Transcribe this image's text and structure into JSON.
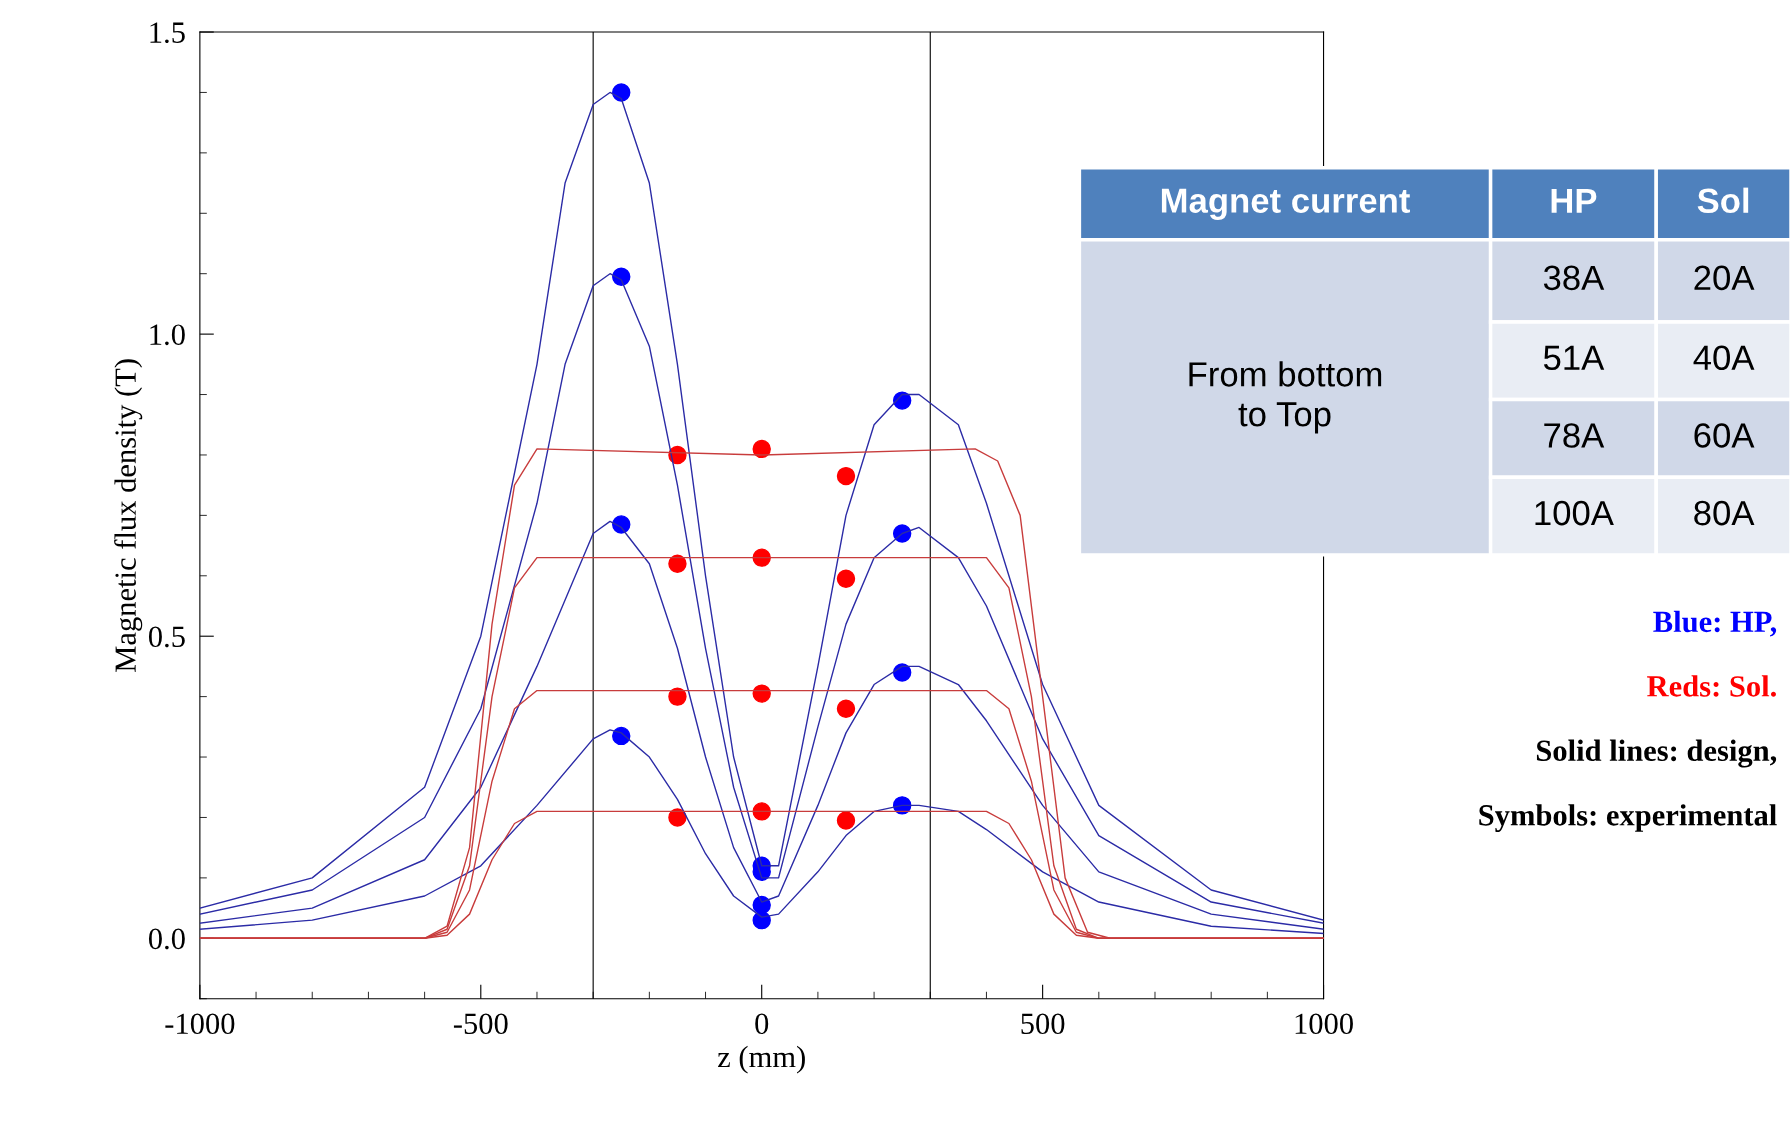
{
  "chart_data": {
    "type": "line",
    "xlabel": "z (mm)",
    "ylabel": "Magnetic flux density (T)",
    "xlim": [
      -1000,
      1000
    ],
    "ylim": [
      -0.1,
      1.5
    ],
    "xticks": [
      -1000,
      -500,
      0,
      500,
      1000
    ],
    "yticks": [
      {
        "value": 0,
        "label": "0.0"
      },
      0.5,
      {
        "value": 1,
        "label": "1.0"
      },
      1.5
    ],
    "grid": false,
    "legend": false,
    "ref_lines": [
      {
        "axis": "x",
        "value": -300,
        "color": "#000000"
      },
      {
        "axis": "x",
        "value": 300,
        "color": "#000000"
      }
    ],
    "series": [
      {
        "color": "#2b2ba6",
        "marker": "none",
        "x": [
          -1000,
          -800,
          -600,
          -500,
          -400,
          -300,
          -270,
          -250,
          -200,
          -150,
          -100,
          -50,
          0,
          30,
          100,
          150,
          200,
          250,
          280,
          350,
          400,
          500,
          600,
          800,
          1000
        ],
        "values": [
          0.015,
          0.03,
          0.07,
          0.12,
          0.22,
          0.33,
          0.345,
          0.34,
          0.3,
          0.23,
          0.14,
          0.07,
          0.035,
          0.04,
          0.11,
          0.17,
          0.21,
          0.22,
          0.22,
          0.21,
          0.18,
          0.11,
          0.06,
          0.02,
          0.008
        ]
      },
      {
        "color": "#2b2ba6",
        "marker": "none",
        "x": [
          -1000,
          -800,
          -600,
          -500,
          -400,
          -300,
          -270,
          -250,
          -200,
          -150,
          -100,
          -50,
          0,
          30,
          100,
          150,
          200,
          250,
          280,
          350,
          400,
          500,
          600,
          800,
          1000
        ],
        "values": [
          0.025,
          0.05,
          0.13,
          0.25,
          0.45,
          0.67,
          0.69,
          0.68,
          0.62,
          0.48,
          0.3,
          0.15,
          0.06,
          0.07,
          0.22,
          0.34,
          0.42,
          0.45,
          0.45,
          0.42,
          0.36,
          0.22,
          0.11,
          0.04,
          0.015
        ]
      },
      {
        "color": "#2b2ba6",
        "marker": "none",
        "x": [
          -1000,
          -800,
          -600,
          -500,
          -400,
          -350,
          -300,
          -270,
          -250,
          -200,
          -150,
          -100,
          -50,
          0,
          30,
          100,
          150,
          200,
          250,
          280,
          350,
          400,
          500,
          600,
          800,
          1000
        ],
        "values": [
          0.04,
          0.08,
          0.2,
          0.38,
          0.72,
          0.95,
          1.08,
          1.1,
          1.09,
          0.98,
          0.75,
          0.48,
          0.25,
          0.1,
          0.1,
          0.35,
          0.52,
          0.63,
          0.67,
          0.68,
          0.63,
          0.55,
          0.33,
          0.17,
          0.06,
          0.025
        ]
      },
      {
        "color": "#2b2ba6",
        "marker": "none",
        "x": [
          -1000,
          -800,
          -600,
          -500,
          -400,
          -350,
          -300,
          -270,
          -250,
          -200,
          -150,
          -100,
          -50,
          0,
          30,
          100,
          150,
          200,
          250,
          280,
          350,
          400,
          500,
          600,
          800,
          1000
        ],
        "values": [
          0.05,
          0.1,
          0.25,
          0.5,
          0.95,
          1.25,
          1.38,
          1.4,
          1.39,
          1.25,
          0.95,
          0.6,
          0.3,
          0.12,
          0.12,
          0.45,
          0.7,
          0.85,
          0.9,
          0.9,
          0.85,
          0.72,
          0.42,
          0.22,
          0.08,
          0.03
        ]
      },
      {
        "color": "#c83c3c",
        "marker": "none",
        "x": [
          -1000,
          -600,
          -560,
          -520,
          -480,
          -440,
          -400,
          0,
          400,
          440,
          480,
          520,
          560,
          600,
          1000
        ],
        "values": [
          0,
          0,
          0.005,
          0.04,
          0.13,
          0.19,
          0.21,
          0.21,
          0.21,
          0.19,
          0.13,
          0.04,
          0.005,
          0,
          0
        ]
      },
      {
        "color": "#c83c3c",
        "marker": "none",
        "x": [
          -1000,
          -600,
          -560,
          -520,
          -480,
          -440,
          -400,
          0,
          400,
          440,
          480,
          520,
          560,
          600,
          1000
        ],
        "values": [
          0,
          0,
          0.01,
          0.08,
          0.26,
          0.38,
          0.41,
          0.41,
          0.41,
          0.38,
          0.26,
          0.08,
          0.01,
          0,
          0
        ]
      },
      {
        "color": "#c83c3c",
        "marker": "none",
        "x": [
          -1000,
          -600,
          -560,
          -520,
          -480,
          -440,
          -400,
          0,
          400,
          440,
          480,
          520,
          560,
          600,
          1000
        ],
        "values": [
          0,
          0,
          0.015,
          0.12,
          0.4,
          0.58,
          0.63,
          0.63,
          0.63,
          0.58,
          0.4,
          0.12,
          0.015,
          0,
          0
        ]
      },
      {
        "color": "#c83c3c",
        "marker": "none",
        "x": [
          -1000,
          -600,
          -560,
          -520,
          -480,
          -440,
          -400,
          0,
          380,
          420,
          460,
          500,
          540,
          580,
          620,
          1000
        ],
        "values": [
          0,
          0,
          0.02,
          0.15,
          0.52,
          0.75,
          0.81,
          0.8,
          0.81,
          0.79,
          0.7,
          0.4,
          0.1,
          0.01,
          0,
          0
        ]
      },
      {
        "type": "scatter",
        "color": "#0000ff",
        "marker": "circle",
        "x": [
          -250,
          0,
          250
        ],
        "values": [
          0.335,
          0.03,
          0.22
        ]
      },
      {
        "type": "scatter",
        "color": "#0000ff",
        "marker": "circle",
        "x": [
          -250,
          0,
          250
        ],
        "values": [
          0.685,
          0.055,
          0.44
        ]
      },
      {
        "type": "scatter",
        "color": "#0000ff",
        "marker": "circle",
        "x": [
          -250,
          0,
          250
        ],
        "values": [
          1.095,
          0.11,
          0.67
        ]
      },
      {
        "type": "scatter",
        "color": "#0000ff",
        "marker": "circle",
        "x": [
          -250,
          0,
          250
        ],
        "values": [
          1.4,
          0.12,
          0.89
        ]
      },
      {
        "type": "scatter",
        "color": "#ff0000",
        "marker": "circle",
        "x": [
          -150,
          0,
          150
        ],
        "values": [
          0.2,
          0.21,
          0.195
        ]
      },
      {
        "type": "scatter",
        "color": "#ff0000",
        "marker": "circle",
        "x": [
          -150,
          0,
          150
        ],
        "values": [
          0.4,
          0.405,
          0.38
        ]
      },
      {
        "type": "scatter",
        "color": "#ff0000",
        "marker": "circle",
        "x": [
          -150,
          0,
          150
        ],
        "values": [
          0.62,
          0.63,
          0.595
        ]
      },
      {
        "type": "scatter",
        "color": "#ff0000",
        "marker": "circle",
        "x": [
          -150,
          0,
          150
        ],
        "values": [
          0.8,
          0.81,
          0.765
        ]
      }
    ],
    "annotations": [
      "Magnet current",
      "HP",
      "Sol",
      "From bottom\nto Top",
      "38A",
      "20A",
      "51A",
      "40A",
      "78A",
      "60A",
      "100A",
      "80A",
      "Blue: HP,",
      "Reds: Sol.",
      "Solid lines: design,",
      "Symbols: experimental"
    ]
  }
}
